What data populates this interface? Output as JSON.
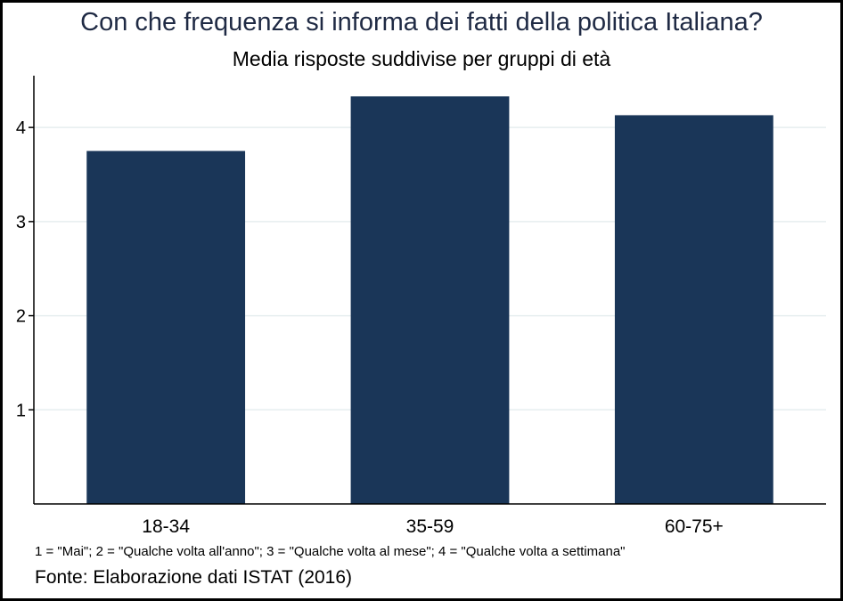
{
  "chart_data": {
    "type": "bar",
    "title": "Con che frequenza si informa dei fatti della politica Italiana?",
    "subtitle": "Media risposte suddivise per gruppi di età",
    "categories": [
      "18-34",
      "35-59",
      "60-75+"
    ],
    "values": [
      3.75,
      4.33,
      4.13
    ],
    "ylim": [
      0,
      4.55
    ],
    "yticks": [
      1,
      2,
      3,
      4
    ],
    "xlabel": "",
    "ylabel": "",
    "grid": true,
    "legend": "none",
    "bar_color": "#1a3658",
    "grid_color": "#e6eeef",
    "note": "1 = \"Mai\"; 2 = \"Qualche volta all'anno\"; 3 = \"Qualche volta al mese\"; 4 = \"Qualche volta a settimana\"",
    "source": "Fonte: Elaborazione dati ISTAT (2016)"
  }
}
